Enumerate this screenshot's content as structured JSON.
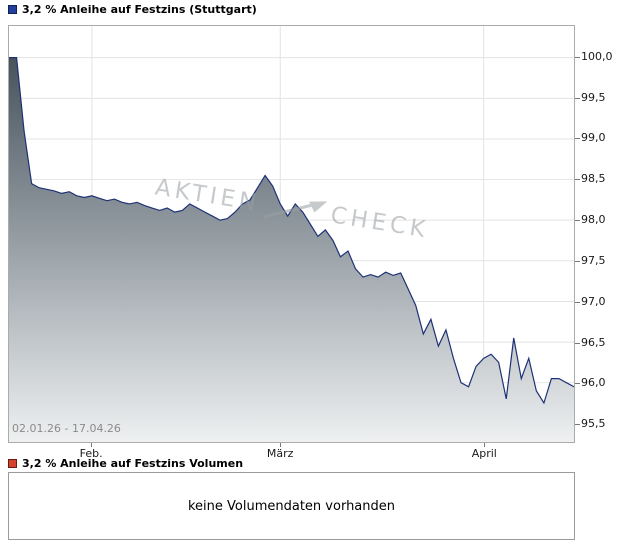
{
  "legend_price": {
    "label": "3,2 % Anleihe auf Festzins (Stuttgart)",
    "color": "#233f9c",
    "border": "#101f55"
  },
  "legend_volume": {
    "label": "3,2 % Anleihe auf Festzins Volumen",
    "color": "#d4422e",
    "border": "#6e1a10"
  },
  "date_range": "02.01.26 - 17.04.26",
  "watermark": {
    "part1": "AKTIEN",
    "part2": "CHECK"
  },
  "volume_message": "keine Volumendaten vorhanden",
  "chart_data": {
    "type": "area",
    "title": "3,2 % Anleihe auf Festzins (Stuttgart)",
    "xlabel": "",
    "ylabel": "",
    "grid": true,
    "legend_position": "top-left",
    "date_start": "02.01.26",
    "date_end": "17.04.26",
    "x_tick_labels": [
      "Feb.",
      "März",
      "April"
    ],
    "x_tick_indices": [
      11,
      36,
      63
    ],
    "y_ticks": [
      100.0,
      99.5,
      99.0,
      98.5,
      98.0,
      97.5,
      97.0,
      96.5,
      96.0,
      95.5
    ],
    "y_tick_labels": [
      "100,0",
      "99,5",
      "99,0",
      "98,5",
      "98,0",
      "97,5",
      "97,0",
      "96,5",
      "96,0",
      "95,5"
    ],
    "ylim": [
      95.27,
      100.39
    ],
    "line_color": "#1d3176",
    "grid_color": "#e3e3e3",
    "area_top": "#47525c",
    "area_mid": "#9aa2a8",
    "area_bottom": "#eef0f1",
    "values": [
      100.0,
      100.0,
      99.1,
      98.45,
      98.4,
      98.38,
      98.36,
      98.33,
      98.35,
      98.3,
      98.28,
      98.3,
      98.27,
      98.24,
      98.26,
      98.22,
      98.2,
      98.22,
      98.18,
      98.15,
      98.12,
      98.15,
      98.1,
      98.12,
      98.2,
      98.15,
      98.1,
      98.05,
      98.0,
      98.02,
      98.1,
      98.2,
      98.25,
      98.4,
      98.55,
      98.42,
      98.2,
      98.05,
      98.2,
      98.1,
      97.95,
      97.8,
      97.88,
      97.75,
      97.55,
      97.62,
      97.4,
      97.3,
      97.33,
      97.3,
      97.36,
      97.32,
      97.35,
      97.15,
      96.95,
      96.6,
      96.78,
      96.45,
      96.65,
      96.3,
      96.0,
      95.95,
      96.2,
      96.3,
      96.35,
      96.25,
      95.8,
      96.55,
      96.05,
      96.3,
      95.9,
      95.75,
      96.05,
      96.05,
      96.0,
      95.95
    ]
  }
}
